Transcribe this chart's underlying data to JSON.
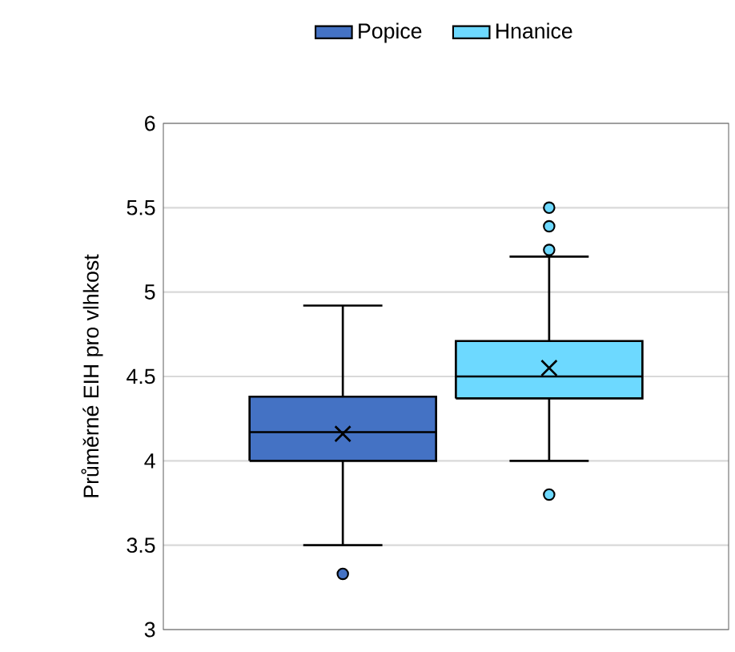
{
  "chart_data": {
    "type": "box",
    "ylabel": "Průměrné  EIH pro vlhkost",
    "categories": [
      null
    ],
    "series": [
      {
        "name": "Popice",
        "color": "#4472c4",
        "boxes": [
          {
            "low": 3.5,
            "q1": 4.0,
            "median": 4.17,
            "q3": 4.38,
            "high": 4.92,
            "mean": 4.16,
            "outliers": [
              3.33
            ]
          }
        ]
      },
      {
        "name": "Hnanice",
        "color": "#6dd9ff",
        "boxes": [
          {
            "low": 4.0,
            "q1": 4.37,
            "median": 4.5,
            "q3": 4.71,
            "high": 5.21,
            "mean": 4.55,
            "outliers": [
              3.8,
              5.25,
              5.39,
              5.5
            ]
          }
        ]
      }
    ],
    "ylim": [
      3,
      6
    ],
    "yticks": [
      3,
      3.5,
      4,
      4.5,
      5,
      5.5,
      6
    ],
    "grid": "y",
    "legend": "top"
  }
}
